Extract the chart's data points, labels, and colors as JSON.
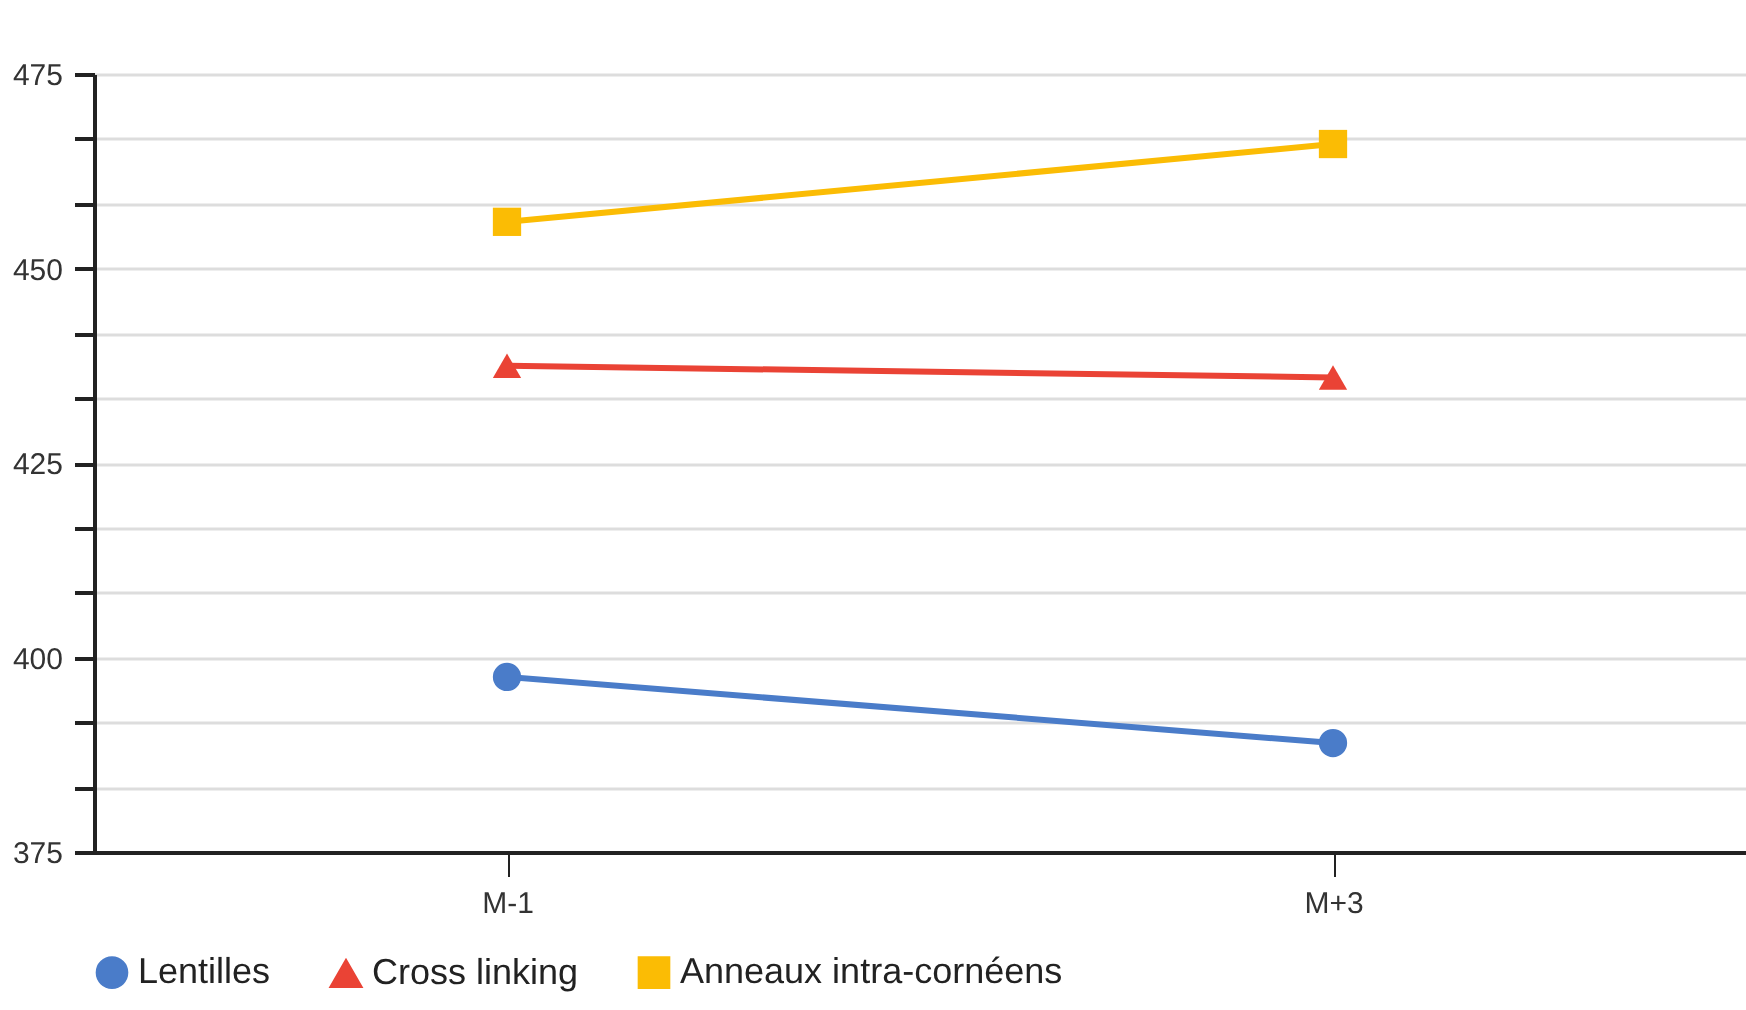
{
  "chart_data": {
    "type": "line",
    "categories": [
      "M-1",
      "M+3"
    ],
    "series": [
      {
        "name": "Lentilles",
        "color": "#4a7cc9",
        "marker": "circle",
        "values": [
          397.5,
          389
        ]
      },
      {
        "name": "Cross linking",
        "color": "#ea4335",
        "marker": "triangle",
        "values": [
          437.5,
          436
        ]
      },
      {
        "name": "Anneaux intra-cornéens",
        "color": "#fbbc04",
        "marker": "square",
        "values": [
          456,
          466
        ]
      }
    ],
    "ylim": [
      375,
      475
    ],
    "yticks": [
      375,
      {
        "value": 383.3,
        "label": null
      },
      {
        "value": 391.7,
        "label": null
      },
      400,
      {
        "value": 408.3,
        "label": null
      },
      {
        "value": 416.7,
        "label": null
      },
      425,
      {
        "value": 433.3,
        "label": null
      },
      {
        "value": 441.7,
        "label": null
      },
      450,
      {
        "value": 458.3,
        "label": null
      },
      {
        "value": 466.7,
        "label": null
      },
      475
    ],
    "grid": true,
    "legend": "bottom",
    "line_style": "solid"
  }
}
